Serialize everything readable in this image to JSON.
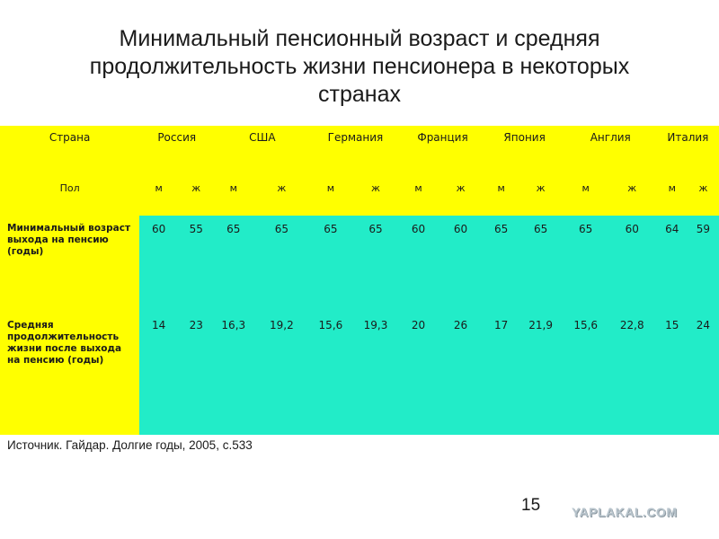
{
  "title": {
    "line1": "Минимальный пенсионный возраст и средняя",
    "line2": "продолжительность жизни пенсионера в некоторых",
    "line3": "странах"
  },
  "table": {
    "country_header": "Страна",
    "countries": [
      "Россия",
      "США",
      "Германия",
      "Франция",
      "Япония",
      "Англия",
      "Италия"
    ],
    "sex_header": "Пол",
    "sexes": [
      "м",
      "ж",
      "м",
      "ж",
      "м",
      "ж",
      "м",
      "ж",
      "м",
      "ж",
      "м",
      "ж",
      "м",
      "ж"
    ],
    "rows": [
      {
        "label": "Минимальный возраст выхода на пенсию (годы)",
        "values": [
          "60",
          "55",
          "65",
          "65",
          "65",
          "65",
          "60",
          "60",
          "65",
          "65",
          "65",
          "60",
          "64",
          "59"
        ]
      },
      {
        "label": "Средняя продолжительность жизни после выхода на пенсию (годы)",
        "values": [
          "14",
          "23",
          "16,3",
          "19,2",
          "15,6",
          "19,3",
          "20",
          "26",
          "17",
          "21,9",
          "15,6",
          "22,8",
          "15",
          "24"
        ]
      }
    ]
  },
  "source": "Источник. Гайдар. Долгие годы, 2005, с.533",
  "page_number": "15",
  "watermark": "YAPLAKAL.COM",
  "colors": {
    "header_bg": "#ffff00",
    "data_bg": "#22ecc8"
  }
}
